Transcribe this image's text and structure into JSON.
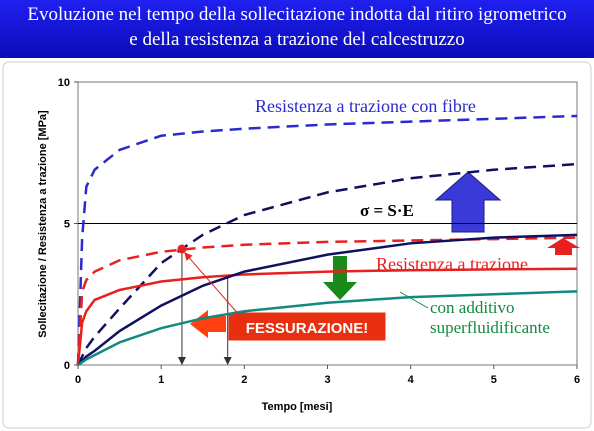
{
  "chart_data": {
    "type": "line",
    "title": "Evoluzione nel tempo della sollecitazione indotta dal ritiro igrometrico",
    "subtitle": "e della resistenza a trazione del calcestruzzo",
    "x_label": "Tempo [mesi]",
    "y_label": "Sollecitazione / Resistenza a trazione   [MPa]",
    "x": [
      0,
      0.05,
      0.1,
      0.2,
      0.5,
      1,
      1.5,
      2,
      3,
      4,
      5,
      6
    ],
    "series": [
      {
        "color": "#2a2ad0",
        "dashed": true,
        "values": [
          0,
          4.5,
          6.3,
          6.9,
          7.6,
          8.1,
          8.25,
          8.35,
          8.5,
          8.6,
          8.7,
          8.8
        ]
      },
      {
        "color": "#101060",
        "dashed": true,
        "values": [
          0,
          0.3,
          0.6,
          1.0,
          2.0,
          3.6,
          4.6,
          5.3,
          6.1,
          6.6,
          6.9,
          7.1
        ]
      },
      {
        "color": "#e82020",
        "dashed": true,
        "values": [
          0,
          2.6,
          3.0,
          3.3,
          3.7,
          4.0,
          4.15,
          4.25,
          4.35,
          4.4,
          4.45,
          4.5
        ]
      },
      {
        "color": "#e82020",
        "dashed": false,
        "values": [
          0,
          1.5,
          1.9,
          2.3,
          2.65,
          2.95,
          3.1,
          3.2,
          3.3,
          3.35,
          3.38,
          3.4
        ]
      },
      {
        "color": "#101060",
        "dashed": false,
        "values": [
          0,
          0.15,
          0.3,
          0.5,
          1.2,
          2.1,
          2.8,
          3.3,
          3.9,
          4.3,
          4.5,
          4.6
        ]
      },
      {
        "color": "#108a80",
        "dashed": false,
        "values": [
          0,
          0.1,
          0.2,
          0.35,
          0.8,
          1.3,
          1.65,
          1.9,
          2.2,
          2.4,
          2.5,
          2.6
        ]
      }
    ],
    "crack_points": [
      {
        "x": 1.25,
        "y": 4.1
      },
      {
        "x": 1.8,
        "y": 3.2
      }
    ],
    "annotations": [
      "Resistenza a trazione con fibre",
      "σ = S·E",
      "Resistenza a trazione",
      "con additivo",
      "superfluidificante",
      "FESSURAZIONE!"
    ],
    "xlim": [
      0,
      6
    ],
    "xticks": [
      0,
      1,
      2,
      3,
      4,
      5,
      6
    ],
    "ylim": [
      0,
      10
    ],
    "yticks": [
      0,
      5,
      10
    ]
  }
}
